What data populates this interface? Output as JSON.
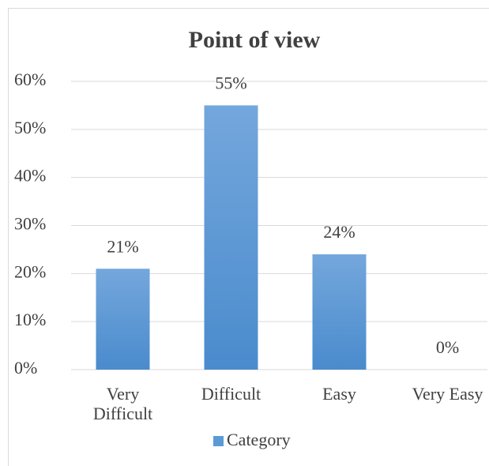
{
  "chart_data": {
    "type": "bar",
    "title": "Point of view",
    "categories": [
      "Very Difficult",
      "Difficult",
      "Easy",
      "Very Easy"
    ],
    "series": [
      {
        "name": "Category",
        "color": "#5b9bd5",
        "values": [
          21,
          55,
          24,
          0
        ],
        "value_labels": [
          "21%",
          "55%",
          "24%",
          "0%"
        ]
      }
    ],
    "ylim": [
      0,
      60
    ],
    "yticks": [
      {
        "value": 0,
        "label": "0%"
      },
      {
        "value": 10,
        "label": "10%"
      },
      {
        "value": 20,
        "label": "20%"
      },
      {
        "value": 30,
        "label": "30%"
      },
      {
        "value": 40,
        "label": "40%"
      },
      {
        "value": 50,
        "label": "50%"
      },
      {
        "value": 60,
        "label": "60%"
      }
    ],
    "grid": true,
    "legend": "bottom"
  }
}
